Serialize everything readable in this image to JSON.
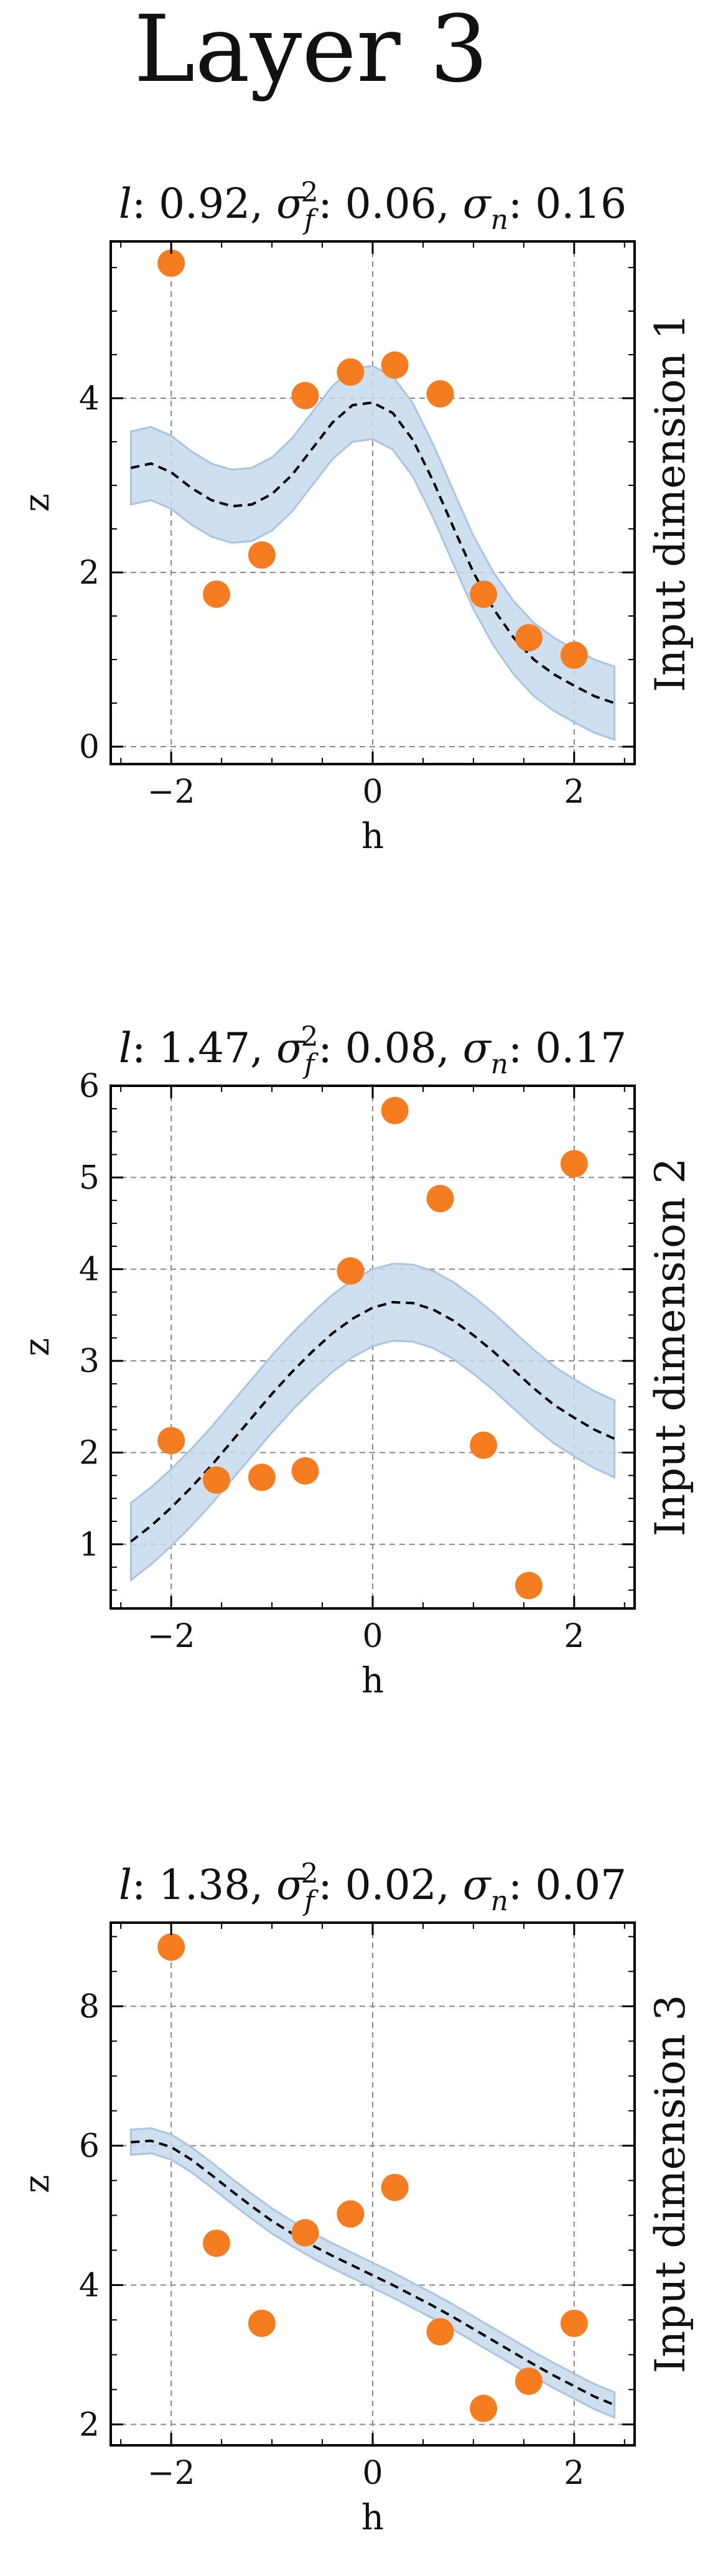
{
  "figure": {
    "title": "Layer 3"
  },
  "chart_data": [
    {
      "type": "scatter",
      "title": {
        "l": "0.92",
        "sf2": "0.06",
        "sn": "0.16"
      },
      "side_label": "Input dimension 1",
      "xlabel": "h",
      "ylabel": "z",
      "xlim": [
        -2.6,
        2.6
      ],
      "ylim": [
        -0.2,
        5.8
      ],
      "xticks": [
        -2,
        0,
        2
      ],
      "xtick_labels": [
        "−2",
        "0",
        "2"
      ],
      "yticks": [
        0,
        2,
        4
      ],
      "ytick_labels": [
        "0",
        "2",
        "4"
      ],
      "grid": true,
      "points": [
        {
          "x": -2.0,
          "y": 5.55
        },
        {
          "x": -1.55,
          "y": 1.75
        },
        {
          "x": -1.1,
          "y": 2.2
        },
        {
          "x": -0.67,
          "y": 4.03
        },
        {
          "x": -0.22,
          "y": 4.3
        },
        {
          "x": 0.22,
          "y": 4.38
        },
        {
          "x": 0.67,
          "y": 4.05
        },
        {
          "x": 1.1,
          "y": 1.75
        },
        {
          "x": 1.55,
          "y": 1.25
        },
        {
          "x": 2.0,
          "y": 1.05
        }
      ],
      "mean": {
        "x": [
          -2.4,
          -2.2,
          -2.0,
          -1.8,
          -1.6,
          -1.4,
          -1.2,
          -1.0,
          -0.8,
          -0.6,
          -0.4,
          -0.2,
          0.0,
          0.2,
          0.4,
          0.6,
          0.8,
          1.0,
          1.2,
          1.4,
          1.6,
          1.8,
          2.0,
          2.2,
          2.4
        ],
        "y": [
          3.2,
          3.25,
          3.15,
          2.97,
          2.83,
          2.76,
          2.78,
          2.9,
          3.12,
          3.42,
          3.72,
          3.92,
          3.95,
          3.83,
          3.52,
          3.05,
          2.52,
          2.0,
          1.58,
          1.25,
          1.0,
          0.83,
          0.7,
          0.58,
          0.5
        ]
      },
      "band_halfwidth": 0.42,
      "colors": {
        "points": "#f57d1f",
        "mean": "#000000",
        "band": "#c6d9ec",
        "band_edge": "#a8c4e0",
        "grid": "#888888"
      }
    },
    {
      "type": "scatter",
      "title": {
        "l": "1.47",
        "sf2": "0.08",
        "sn": "0.17"
      },
      "side_label": "Input dimension 2",
      "xlabel": "h",
      "ylabel": "z",
      "xlim": [
        -2.6,
        2.6
      ],
      "ylim": [
        0.3,
        6.0
      ],
      "xticks": [
        -2,
        0,
        2
      ],
      "xtick_labels": [
        "−2",
        "0",
        "2"
      ],
      "yticks": [
        1,
        2,
        3,
        4,
        5,
        6
      ],
      "ytick_labels": [
        "1",
        "2",
        "3",
        "4",
        "5",
        "6"
      ],
      "grid": true,
      "points": [
        {
          "x": -2.0,
          "y": 2.13
        },
        {
          "x": -1.55,
          "y": 1.7
        },
        {
          "x": -1.1,
          "y": 1.73
        },
        {
          "x": -0.67,
          "y": 1.8
        },
        {
          "x": -0.22,
          "y": 3.98
        },
        {
          "x": 0.22,
          "y": 5.73
        },
        {
          "x": 0.67,
          "y": 4.77
        },
        {
          "x": 1.1,
          "y": 2.08
        },
        {
          "x": 1.55,
          "y": 0.55
        },
        {
          "x": 2.0,
          "y": 5.15
        }
      ],
      "mean": {
        "x": [
          -2.4,
          -2.2,
          -2.0,
          -1.8,
          -1.6,
          -1.4,
          -1.2,
          -1.0,
          -0.8,
          -0.6,
          -0.4,
          -0.2,
          0.0,
          0.2,
          0.4,
          0.6,
          0.8,
          1.0,
          1.2,
          1.4,
          1.6,
          1.8,
          2.0,
          2.2,
          2.4
        ],
        "y": [
          1.03,
          1.2,
          1.4,
          1.62,
          1.86,
          2.12,
          2.38,
          2.64,
          2.88,
          3.1,
          3.3,
          3.46,
          3.58,
          3.64,
          3.63,
          3.56,
          3.44,
          3.28,
          3.1,
          2.9,
          2.7,
          2.52,
          2.38,
          2.25,
          2.15
        ]
      },
      "band_halfwidth": 0.42,
      "colors": {
        "points": "#f57d1f",
        "mean": "#000000",
        "band": "#c6d9ec",
        "band_edge": "#a8c4e0",
        "grid": "#888888"
      }
    },
    {
      "type": "scatter",
      "title": {
        "l": "1.38",
        "sf2": "0.02",
        "sn": "0.07"
      },
      "side_label": "Input dimension 3",
      "xlabel": "h",
      "ylabel": "z",
      "xlim": [
        -2.6,
        2.6
      ],
      "ylim": [
        1.7,
        9.2
      ],
      "xticks": [
        -2,
        0,
        2
      ],
      "xtick_labels": [
        "−2",
        "0",
        "2"
      ],
      "yticks": [
        2,
        4,
        6,
        8
      ],
      "ytick_labels": [
        "2",
        "4",
        "6",
        "8"
      ],
      "grid": true,
      "points": [
        {
          "x": -2.0,
          "y": 8.85
        },
        {
          "x": -1.55,
          "y": 4.6
        },
        {
          "x": -1.1,
          "y": 3.45
        },
        {
          "x": -0.67,
          "y": 4.75
        },
        {
          "x": -0.22,
          "y": 5.02
        },
        {
          "x": 0.22,
          "y": 5.4
        },
        {
          "x": 0.67,
          "y": 3.33
        },
        {
          "x": 1.1,
          "y": 2.23
        },
        {
          "x": 1.55,
          "y": 2.62
        },
        {
          "x": 2.0,
          "y": 3.45
        }
      ],
      "mean": {
        "x": [
          -2.4,
          -2.2,
          -2.0,
          -1.8,
          -1.6,
          -1.4,
          -1.2,
          -1.0,
          -0.8,
          -0.6,
          -0.4,
          -0.2,
          0.0,
          0.2,
          0.4,
          0.6,
          0.8,
          1.0,
          1.2,
          1.4,
          1.6,
          1.8,
          2.0,
          2.2,
          2.4
        ],
        "y": [
          6.05,
          6.07,
          5.98,
          5.8,
          5.58,
          5.35,
          5.13,
          4.92,
          4.74,
          4.57,
          4.42,
          4.28,
          4.14,
          4.0,
          3.85,
          3.7,
          3.54,
          3.37,
          3.2,
          3.03,
          2.86,
          2.7,
          2.55,
          2.4,
          2.28
        ]
      },
      "band_halfwidth": 0.18,
      "colors": {
        "points": "#f57d1f",
        "mean": "#000000",
        "band": "#c6d9ec",
        "band_edge": "#a8c4e0",
        "grid": "#888888"
      }
    }
  ]
}
